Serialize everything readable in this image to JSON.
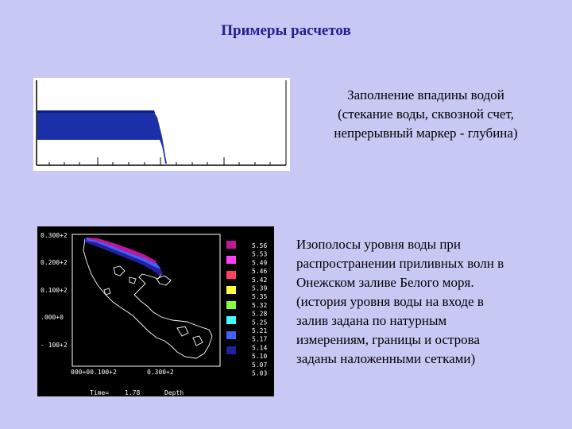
{
  "slide": {
    "title": "Примеры расчетов"
  },
  "figure1": {
    "caption_lines": [
      "Заполнение впадины водой",
      "(стекание воды, сквозной счет,",
      "непрерывный маркер - глубина)"
    ],
    "water_color": "#1a2fa8"
  },
  "figure2": {
    "y_ticks": [
      "0.300+2",
      "0.200+2",
      "0.100+2",
      ".000+0",
      "- 100+2"
    ],
    "x_ticks": [
      "000+00.100+2",
      "0.300+2"
    ],
    "footer_time_label": "Time=",
    "footer_time_value": "1.78",
    "footer_var": "Depth",
    "legend": [
      {
        "value": "5.56",
        "color": "#c0189c"
      },
      {
        "value": "5.53",
        "color": "#ff40ff"
      },
      {
        "value": "5.49",
        "color": "#ff4060"
      },
      {
        "value": "5.46",
        "color": "#ffa040"
      },
      {
        "value": "5.42",
        "color": "#ffff40"
      },
      {
        "value": "5.39",
        "color": "#80ff40"
      },
      {
        "value": "5.35",
        "color": "#40ff90"
      },
      {
        "value": "5.32",
        "color": "#40ffff"
      },
      {
        "value": "5.28",
        "color": "#40a0ff"
      },
      {
        "value": "5.25",
        "color": "#4060ff"
      },
      {
        "value": "5.21",
        "color": "#3030d0"
      },
      {
        "value": "5.17",
        "color": "#2020a0"
      },
      {
        "value": "5.14",
        "color": "#101080"
      },
      {
        "value": "5.10",
        "color": "#080860"
      },
      {
        "value": "5.07",
        "color": "#040440"
      },
      {
        "value": "5.03",
        "color": "#020230"
      }
    ]
  },
  "caption2": {
    "lines": [
      "Изополосы уровня воды при",
      "распространении приливных волн в",
      "Онежском заливе Белого моря.",
      "(история уровня воды на входе в",
      "залив задана по натурным",
      "измерениям, границы и острова",
      "заданы наложенными сетками)"
    ]
  }
}
